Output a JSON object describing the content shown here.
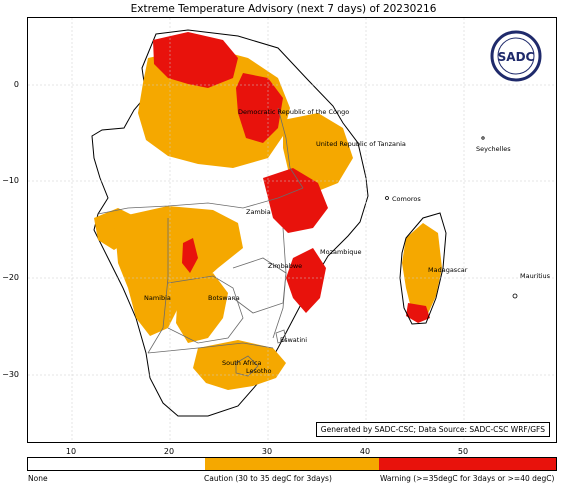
{
  "title": "Extreme Temperature Advisory (next 7 days) of 20230216",
  "credit": "Generated by SADC-CSC; Data Source: SADC-CSC WRF/GFS",
  "logo_text": "SADC",
  "axes": {
    "x_ticks": [
      "10",
      "20",
      "30",
      "40",
      "50"
    ],
    "y_ticks": [
      "0",
      "−10",
      "−20",
      "−30"
    ]
  },
  "places": {
    "drc": "Democratic Republic of the Congo",
    "tanzania": "United Republic of Tanzania",
    "seychelles": "Seychelles",
    "comoros": "Comoros",
    "zambia": "Zambia",
    "mozambique": "Mozambique",
    "zimbabwe": "Zimbabwe",
    "namibia": "Namibia",
    "botswana": "Botswana",
    "madagascar": "Madagascar",
    "mauritius": "Mauritius",
    "eswatini": "Eswatini",
    "south_africa": "South Africa",
    "lesotho": "Lesotho"
  },
  "legend": {
    "none": "None",
    "caution": "Caution (30 to 35 degC for 3days)",
    "warning": "Warning (>=35degC for 3days or >=40 degC)"
  },
  "colors": {
    "none": "#ffffff",
    "caution": "#f5a800",
    "warning": "#e8120c",
    "land_outline": "#000000",
    "border": "#6b6b6b",
    "logo": "#1f2a6b"
  }
}
